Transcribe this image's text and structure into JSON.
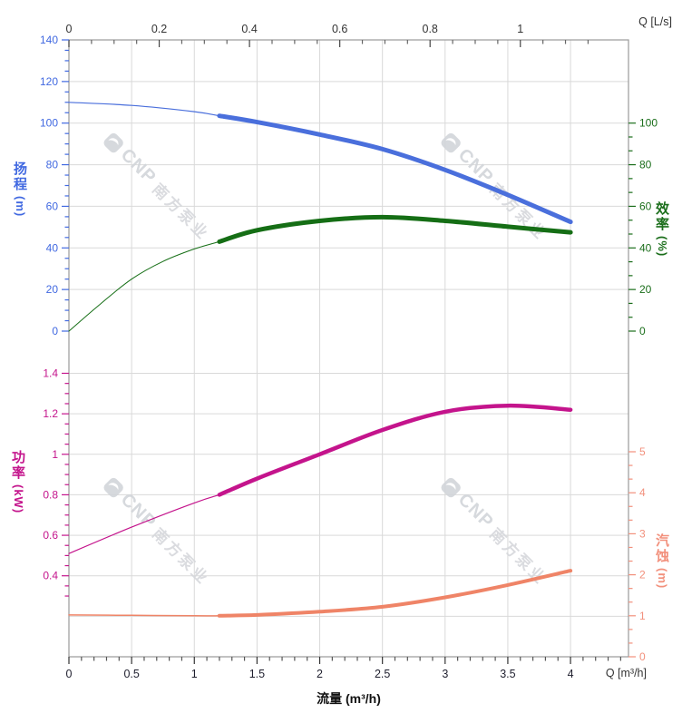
{
  "watermark": {
    "brand": "CNP",
    "cn": "南方泵业",
    "color": "#d2d5da"
  },
  "colors": {
    "grid": "#d9d9d9",
    "frame": "#9a9a9a",
    "top_x_labels": "#333333",
    "bottom_x_labels": "#1f1f2e",
    "head": "#4a6fdc",
    "head_labels": "#4169e1",
    "efficiency": "#156e15",
    "efficiency_labels": "#1b6e1b",
    "power": "#c4148c",
    "npsh": "#ef8467",
    "npsh_labels": "#f2907c"
  },
  "labels": {
    "top_unit": "Q [L/s]",
    "bottom_unit": "Q [m³/h]",
    "x_title": "流量 (m³/h)",
    "head": {
      "l1": "扬",
      "l2": "程",
      "unit": "(m)"
    },
    "efficiency": {
      "l1": "效",
      "l2": "率",
      "unit": "(%)"
    },
    "power": {
      "l1": "功",
      "l2": "率",
      "unit": "(kW)"
    },
    "npsh": {
      "l1": "汽",
      "l2": "蚀",
      "unit": "(m)"
    }
  },
  "chart_data": [
    {
      "id": "head-efficiency-chart",
      "type": "line",
      "grid": true,
      "x_top": {
        "unit": "Q [L/s]",
        "ticks": [
          "0",
          "0.2",
          "0.4",
          "0.6",
          "0.8",
          "1"
        ],
        "minor_step": 0.05,
        "range": [
          0,
          1.24
        ]
      },
      "x_bottom": {
        "unit": "Q [m³/h]",
        "ticks": [
          "0",
          "0.5",
          "1",
          "1.5",
          "2",
          "2.5",
          "3",
          "3.5",
          "4"
        ],
        "minor_step": 0.1,
        "range": [
          0,
          4.46
        ]
      },
      "y_left": {
        "title": "扬程 (m)",
        "ticks": [
          "0",
          "20",
          "40",
          "60",
          "80",
          "100",
          "120",
          "140"
        ],
        "minor_step": 5,
        "range": [
          0,
          140
        ]
      },
      "y_right": {
        "title": "效率 (%)",
        "ticks": [
          "0",
          "20",
          "40",
          "60",
          "80",
          "100"
        ],
        "minors_per_gap": 2,
        "range": [
          0,
          140
        ]
      },
      "series": [
        {
          "name": "head",
          "axis": "y_left",
          "color": "#4a6fdc",
          "bold_from": 1.2,
          "thin_width": 1.2,
          "bold_width": 5,
          "points": [
            [
              0,
              110
            ],
            [
              0.5,
              108.5
            ],
            [
              1,
              105.5
            ],
            [
              1.2,
              103.5
            ],
            [
              1.5,
              100.5
            ],
            [
              2,
              94.5
            ],
            [
              2.5,
              87.5
            ],
            [
              3,
              77.5
            ],
            [
              3.5,
              65.5
            ],
            [
              4,
              52.5
            ]
          ]
        },
        {
          "name": "efficiency",
          "axis": "y_right",
          "color": "#156e15",
          "bold_from": 1.2,
          "thin_width": 1,
          "bold_width": 5,
          "points": [
            [
              0,
              0
            ],
            [
              0.25,
              13
            ],
            [
              0.5,
              25
            ],
            [
              0.75,
              33.5
            ],
            [
              1,
              39.5
            ],
            [
              1.2,
              43
            ],
            [
              1.5,
              48.5
            ],
            [
              2,
              53
            ],
            [
              2.5,
              54.8
            ],
            [
              3,
              53
            ],
            [
              3.5,
              50.2
            ],
            [
              4,
              47.5
            ]
          ]
        }
      ]
    },
    {
      "id": "power-npsh-chart",
      "type": "line",
      "grid": true,
      "x_bottom": {
        "unit": "Q [m³/h]",
        "title": "流量 (m³/h)",
        "ticks": [
          "0",
          "0.5",
          "1",
          "1.5",
          "2",
          "2.5",
          "3",
          "3.5",
          "4"
        ],
        "minor_step": 0.1,
        "range": [
          0,
          4.46
        ]
      },
      "y_left": {
        "title": "功率 (kW)",
        "ticks": [
          "0.4",
          "0.6",
          "0.8",
          "1",
          "1.2",
          "1.4"
        ],
        "minor_step": 0.05,
        "minor_range": [
          0.3,
          1.4
        ],
        "range": [
          0,
          1.45
        ]
      },
      "y_right": {
        "title": "汽蚀 (m)",
        "ticks": [
          "0",
          "1",
          "2",
          "3",
          "4",
          "5"
        ],
        "minors_per_gap": 2,
        "range": [
          0,
          7.26
        ]
      },
      "series": [
        {
          "name": "power",
          "axis": "y_left",
          "color": "#c4148c",
          "bold_from": 1.2,
          "thin_width": 1.2,
          "bold_width": 4.5,
          "points": [
            [
              0,
              0.51
            ],
            [
              0.5,
              0.64
            ],
            [
              1,
              0.76
            ],
            [
              1.2,
              0.8
            ],
            [
              1.5,
              0.88
            ],
            [
              2,
              1.0
            ],
            [
              2.5,
              1.12
            ],
            [
              3,
              1.21
            ],
            [
              3.5,
              1.24
            ],
            [
              4,
              1.22
            ]
          ]
        },
        {
          "name": "npsh",
          "axis": "y_right",
          "color": "#ef8467",
          "bold_from": 1.2,
          "thin_width": 1.5,
          "bold_width": 4,
          "points": [
            [
              0,
              1.02
            ],
            [
              0.5,
              1.01
            ],
            [
              1,
              1.0
            ],
            [
              1.2,
              1.0
            ],
            [
              1.5,
              1.02
            ],
            [
              2,
              1.1
            ],
            [
              2.5,
              1.22
            ],
            [
              3,
              1.45
            ],
            [
              3.5,
              1.75
            ],
            [
              4,
              2.1
            ]
          ]
        }
      ]
    }
  ]
}
